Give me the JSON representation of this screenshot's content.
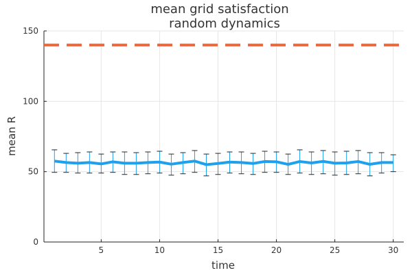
{
  "chart_data": {
    "type": "line",
    "title_lines": [
      "mean grid satisfaction",
      "random dynamics"
    ],
    "xlabel": "time",
    "ylabel": "mean R",
    "xlim": [
      0.1,
      30.9
    ],
    "ylim": [
      0,
      150
    ],
    "xticks": [
      5,
      10,
      15,
      20,
      25,
      30
    ],
    "yticks": [
      0,
      50,
      100,
      150
    ],
    "grid": true,
    "legend": "none",
    "x": [
      1,
      2,
      3,
      4,
      5,
      6,
      7,
      8,
      9,
      10,
      11,
      12,
      13,
      14,
      15,
      16,
      17,
      18,
      19,
      20,
      21,
      22,
      23,
      24,
      25,
      26,
      27,
      28,
      29,
      30
    ],
    "series": [
      {
        "values": [
          57.5,
          56.5,
          56,
          56.5,
          55.5,
          57,
          56,
          56,
          56.5,
          56.8,
          55.3,
          56.5,
          57.5,
          55,
          55.8,
          56.8,
          56.5,
          55.8,
          57.2,
          57,
          55.2,
          57.2,
          56.2,
          57.3,
          56,
          56.2,
          57.2,
          55.2,
          56.5,
          56.5
        ],
        "err_lower": [
          49.5,
          49.5,
          49,
          49,
          49,
          49.5,
          48,
          48,
          48.5,
          49,
          47.5,
          48.5,
          49.5,
          47,
          48,
          49,
          48.5,
          48,
          49.5,
          49.5,
          48,
          49,
          48,
          48.5,
          47.5,
          48,
          48.5,
          47,
          49,
          50
        ],
        "err_upper": [
          65.5,
          63,
          63.5,
          64,
          62.5,
          64,
          64,
          63.5,
          64,
          64.5,
          62.5,
          63.5,
          65,
          62.5,
          63,
          64,
          64,
          63,
          64.5,
          64,
          62.5,
          65.5,
          64,
          65,
          64,
          64.5,
          65,
          63.5,
          63.5,
          62
        ],
        "color": "#1fa0ec"
      },
      {
        "values": [
          140,
          140
        ],
        "x": [
          0.1,
          30.9
        ],
        "style": "dashed",
        "color": "#e5683f"
      }
    ]
  }
}
